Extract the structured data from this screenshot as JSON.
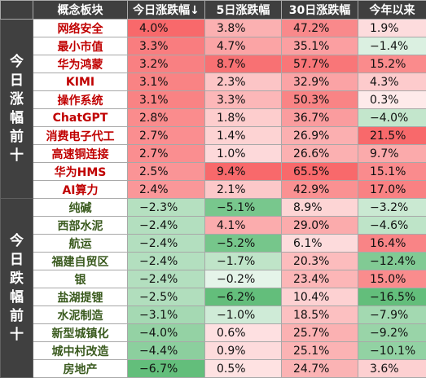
{
  "colors": {
    "header_bg": "#3f3f3f",
    "gain_name_color": "#c00000",
    "loss_name_color": "#3a5a1e",
    "pos_max": "#f8696b",
    "neg_max": "#63be7b",
    "zero": "#ffffff"
  },
  "chart_data": {
    "type": "table",
    "columns": [
      "概念板块",
      "今日涨跌幅↓",
      "5日涨跌幅",
      "30日涨跌幅",
      "今年以来"
    ],
    "unit": "%",
    "groups": [
      {
        "label": "今日涨幅前十",
        "rows": [
          {
            "name": "网络安全",
            "values": [
              4.0,
              3.8,
              47.2,
              1.9
            ]
          },
          {
            "name": "最小市值",
            "values": [
              3.3,
              4.7,
              35.1,
              -1.4
            ]
          },
          {
            "name": "华为鸿蒙",
            "values": [
              3.2,
              8.7,
              57.7,
              15.2
            ]
          },
          {
            "name": "KIMI",
            "values": [
              3.1,
              2.3,
              32.9,
              4.3
            ]
          },
          {
            "name": "操作系统",
            "values": [
              3.1,
              3.3,
              50.3,
              0.3
            ]
          },
          {
            "name": "ChatGPT",
            "values": [
              2.8,
              1.8,
              36.7,
              -4.0
            ]
          },
          {
            "name": "消费电子代工",
            "values": [
              2.7,
              1.4,
              26.9,
              21.5
            ]
          },
          {
            "name": "高速铜连接",
            "values": [
              2.7,
              1.0,
              26.6,
              9.7
            ]
          },
          {
            "name": "华为HMS",
            "values": [
              2.5,
              9.4,
              65.5,
              15.1
            ]
          },
          {
            "name": "AI算力",
            "values": [
              2.4,
              2.1,
              42.9,
              17.0
            ]
          }
        ]
      },
      {
        "label": "今日跌幅前十",
        "rows": [
          {
            "name": "纯碱",
            "values": [
              -2.3,
              -5.1,
              8.9,
              -3.2
            ]
          },
          {
            "name": "西部水泥",
            "values": [
              -2.4,
              4.1,
              29.0,
              -4.6
            ]
          },
          {
            "name": "航运",
            "values": [
              -2.4,
              -5.2,
              6.1,
              16.4
            ]
          },
          {
            "name": "福建自贸区",
            "values": [
              -2.4,
              -1.7,
              20.3,
              -12.4
            ]
          },
          {
            "name": "银",
            "values": [
              -2.4,
              -0.2,
              23.4,
              15.0
            ]
          },
          {
            "name": "盐湖提锂",
            "values": [
              -2.5,
              -6.2,
              10.4,
              -16.5
            ]
          },
          {
            "name": "水泥制造",
            "values": [
              -3.1,
              -1.0,
              18.5,
              -7.9
            ]
          },
          {
            "name": "新型城镇化",
            "values": [
              -4.0,
              0.6,
              25.7,
              -9.2
            ]
          },
          {
            "name": "城中村改造",
            "values": [
              -4.4,
              0.9,
              25.1,
              -10.1
            ]
          },
          {
            "name": "房地产",
            "values": [
              -6.7,
              0.5,
              24.7,
              3.6
            ]
          }
        ]
      }
    ]
  }
}
